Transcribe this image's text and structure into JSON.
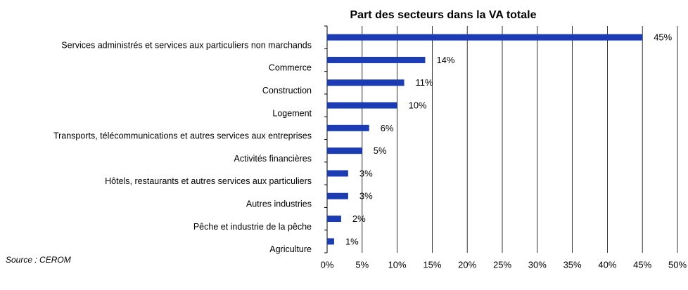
{
  "chart_data": {
    "type": "barh",
    "title": "Part des secteurs dans la VA totale",
    "source": "Source : CEROM",
    "categories": [
      "Services administrés et services aux particuliers non marchands",
      "Commerce",
      "Construction",
      "Logement",
      "Transports, télécommunications et autres services aux entreprises",
      "Activités financières",
      "Hôtels, restaurants et autres services aux particuliers",
      "Autres industries",
      "Pêche et industrie de la pêche",
      "Agriculture"
    ],
    "values": [
      45,
      14,
      11,
      10,
      6,
      5,
      3,
      3,
      2,
      1
    ],
    "value_labels": [
      "45%",
      "14%",
      "11%",
      "10%",
      "6%",
      "5%",
      "3%",
      "3%",
      "2%",
      "1%"
    ],
    "color": "#1c3cb4",
    "xlim": [
      0,
      50
    ],
    "xticks": [
      {
        "value": 0,
        "label": "0%"
      },
      {
        "value": 5,
        "label": "5%"
      },
      {
        "value": 10,
        "label": "10%"
      },
      {
        "value": 15,
        "label": "15%"
      },
      {
        "value": 20,
        "label": "20%"
      },
      {
        "value": 25,
        "label": "25%"
      },
      {
        "value": 30,
        "label": "30%"
      },
      {
        "value": 35,
        "label": "35%"
      },
      {
        "value": 40,
        "label": "40%"
      },
      {
        "value": 45,
        "label": "45%"
      },
      {
        "value": 50,
        "label": "50%"
      }
    ],
    "grid": true
  }
}
